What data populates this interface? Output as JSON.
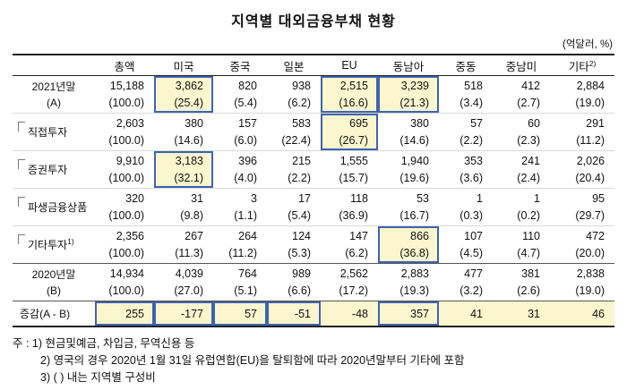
{
  "page": {
    "title": "지역별 대외금융부채 현황",
    "unit_label": "(억달러, %)"
  },
  "colors": {
    "highlight_bg": "#FCF6CF",
    "highlight_border": "#3F63AD"
  },
  "table": {
    "columns": [
      {
        "label": "총액",
        "sup": ""
      },
      {
        "label": "미국",
        "sup": ""
      },
      {
        "label": "중국",
        "sup": ""
      },
      {
        "label": "일본",
        "sup": ""
      },
      {
        "label": "EU",
        "sup": ""
      },
      {
        "label": "동남아",
        "sup": ""
      },
      {
        "label": "중동",
        "sup": ""
      },
      {
        "label": "중남미",
        "sup": ""
      },
      {
        "label": "기타",
        "sup": "2)"
      }
    ],
    "rows": [
      {
        "label": "2021년말",
        "sublabel": "(A)",
        "label_sup": "",
        "indent": false,
        "type": "data",
        "values": [
          "15,188",
          "3,862",
          "820",
          "938",
          "2,515",
          "3,239",
          "518",
          "412",
          "2,884"
        ],
        "pcts": [
          "(100.0)",
          "(25.4)",
          "(5.4)",
          "(6.2)",
          "(16.6)",
          "(21.3)",
          "(3.4)",
          "(2.7)",
          "(19.0)"
        ],
        "highlight_cols": [
          1,
          4,
          5
        ]
      },
      {
        "label": "직접투자",
        "sublabel": "",
        "label_sup": "",
        "indent": true,
        "type": "data",
        "values": [
          "2,603",
          "380",
          "157",
          "583",
          "695",
          "380",
          "57",
          "60",
          "291"
        ],
        "pcts": [
          "(100.0)",
          "(14.6)",
          "(6.0)",
          "(22.4)",
          "(26.7)",
          "(14.6)",
          "(2.2)",
          "(2.3)",
          "(11.2)"
        ],
        "highlight_cols": [
          4
        ]
      },
      {
        "label": "증권투자",
        "sublabel": "",
        "label_sup": "",
        "indent": true,
        "type": "data",
        "values": [
          "9,910",
          "3,183",
          "396",
          "215",
          "1,555",
          "1,940",
          "353",
          "241",
          "2,026"
        ],
        "pcts": [
          "(100.0)",
          "(32.1)",
          "(4.0)",
          "(2.2)",
          "(15.7)",
          "(19.6)",
          "(3.6)",
          "(2.4)",
          "(20.4)"
        ],
        "highlight_cols": [
          1
        ]
      },
      {
        "label": "파생금융상품",
        "sublabel": "",
        "label_sup": "",
        "indent": true,
        "type": "data",
        "values": [
          "320",
          "31",
          "3",
          "17",
          "118",
          "53",
          "1",
          "1",
          "95"
        ],
        "pcts": [
          "(100.0)",
          "(9.8)",
          "(1.1)",
          "(5.4)",
          "(36.9)",
          "(16.7)",
          "(0.3)",
          "(0.2)",
          "(29.7)"
        ],
        "highlight_cols": []
      },
      {
        "label": "기타투자",
        "sublabel": "",
        "label_sup": "1)",
        "indent": true,
        "type": "data",
        "values": [
          "2,356",
          "267",
          "264",
          "124",
          "147",
          "866",
          "107",
          "110",
          "472"
        ],
        "pcts": [
          "(100.0)",
          "(11.3)",
          "(11.2)",
          "(5.3)",
          "(6.2)",
          "(36.8)",
          "(4.5)",
          "(4.7)",
          "(20.0)"
        ],
        "highlight_cols": [
          5
        ]
      },
      {
        "label": "2020년말",
        "sublabel": "(B)",
        "label_sup": "",
        "indent": false,
        "type": "data",
        "values": [
          "14,934",
          "4,039",
          "764",
          "989",
          "2,562",
          "2,883",
          "477",
          "381",
          "2,838"
        ],
        "pcts": [
          "(100.0)",
          "(27.0)",
          "(5.1)",
          "(6.6)",
          "(17.2)",
          "(19.3)",
          "(3.2)",
          "(2.6)",
          "(19.0)"
        ],
        "highlight_cols": []
      },
      {
        "label": "증감(A - B)",
        "sublabel": "",
        "label_sup": "",
        "indent": false,
        "type": "delta",
        "values": [
          "255",
          "-177",
          "57",
          "-51",
          "-48",
          "357",
          "41",
          "31",
          "46"
        ],
        "pcts": [],
        "highlight_cols": [
          0,
          1,
          2,
          3,
          5
        ]
      }
    ]
  },
  "notes": [
    {
      "text": "주 : 1) 현금및예금, 차입금, 무역신용 등"
    },
    {
      "text": "2) 영국의 경우 2020년 1월 31일 유럽연합(EU)을 탈퇴함에 따라 2020년말부터 기타에 포함"
    },
    {
      "text": "3) ( ) 내는 지역별 구성비"
    }
  ]
}
